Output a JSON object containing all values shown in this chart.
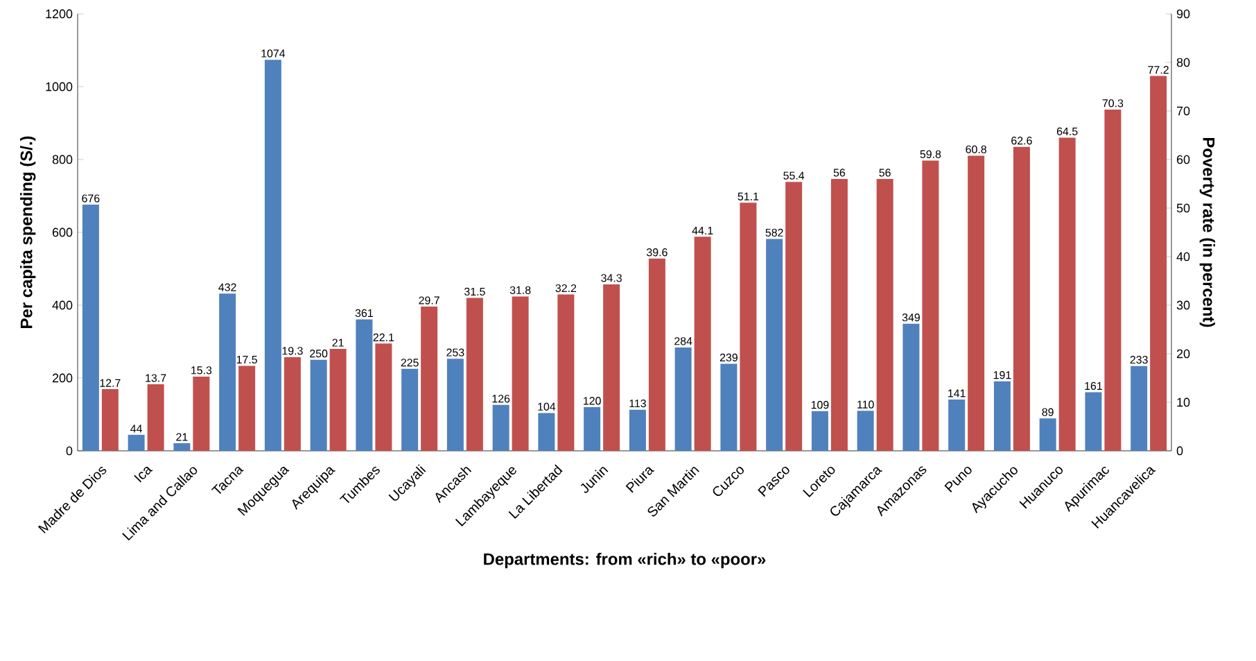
{
  "chart_data": {
    "type": "bar",
    "xlabel": "Departments: from «rich» to «poor»",
    "ylabel": "Per capita spending (S/.)",
    "y2label": "Poverty rate (in percent)",
    "categories": [
      "Madre de Dios",
      "Ica",
      "Lima and Callao",
      "Tacna",
      "Moquegua",
      "Arequipa",
      "Tumbes",
      "Ucayali",
      "Ancash",
      "Lambayeque",
      "La Libertad",
      "Junin",
      "Piura",
      "San Martin",
      "Cuzco",
      "Pasco",
      "Loreto",
      "Cajamarca",
      "Amazonas",
      "Puno",
      "Ayacucho",
      "Huanuco",
      "Apurimac",
      "Huancavelica"
    ],
    "series": [
      {
        "color": "#4f81bd",
        "values": [
          676,
          44,
          21,
          432,
          1074,
          250,
          361,
          225,
          253,
          126,
          104,
          120,
          113,
          284,
          239,
          582,
          109,
          110,
          349,
          141,
          191,
          89,
          161,
          233
        ]
      },
      {
        "color": "#c0504d",
        "axis": "y2",
        "values": [
          12.7,
          13.7,
          15.3,
          17.5,
          19.3,
          21,
          22.1,
          29.7,
          31.5,
          31.8,
          32.2,
          34.3,
          39.6,
          44.1,
          51.1,
          55.4,
          56,
          56,
          59.8,
          60.8,
          62.6,
          64.5,
          70.3,
          77.2
        ]
      }
    ],
    "ylim": [
      0,
      1200
    ],
    "yticks": [
      0,
      200,
      400,
      600,
      800,
      1000,
      1200
    ],
    "y2lim": [
      0,
      90
    ],
    "y2ticks": [
      0,
      10,
      20,
      30,
      40,
      50,
      60,
      70,
      80,
      90
    ],
    "data_labels": true
  }
}
